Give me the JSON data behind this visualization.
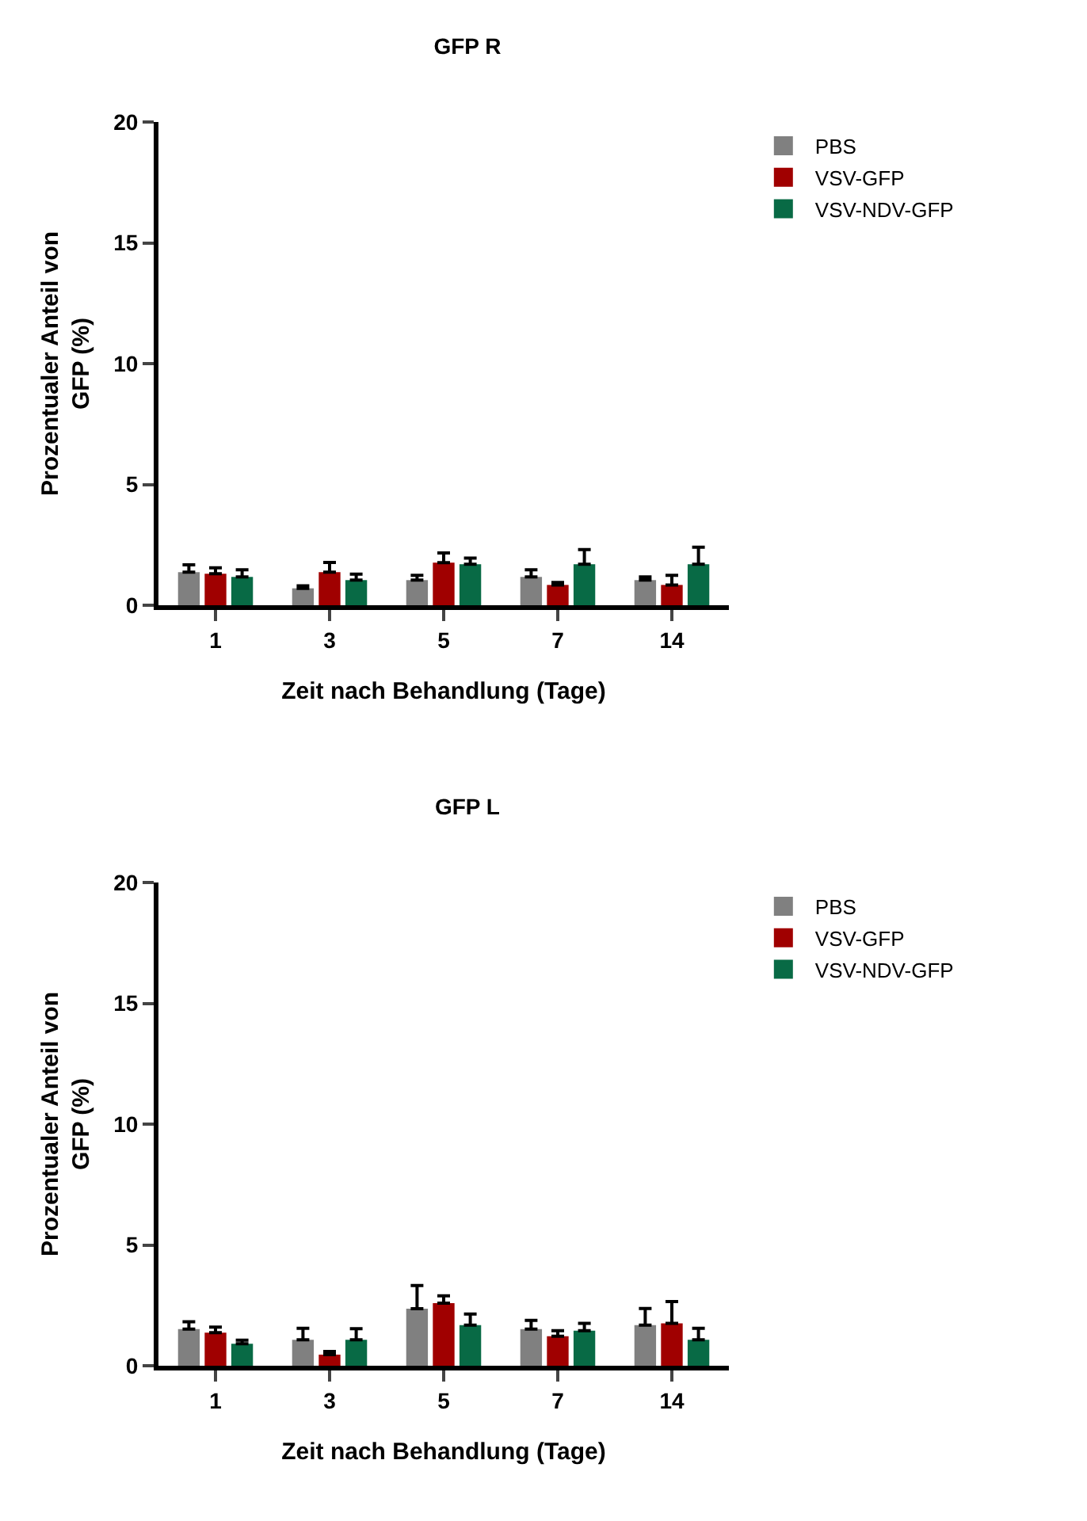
{
  "chart_data": [
    {
      "type": "bar",
      "title": "GFP R",
      "xlabel": "Zeit nach Behandlung (Tage)",
      "ylabel": "Prozentualer Anteil von GFP (%)",
      "categories": [
        "1",
        "3",
        "5",
        "7",
        "14"
      ],
      "ylim": [
        0,
        20
      ],
      "yticks": [
        0,
        5,
        10,
        15,
        20
      ],
      "grid": false,
      "legend": "top right",
      "series": [
        {
          "name": "PBS",
          "color": "#808080",
          "values": [
            1.37,
            0.7,
            1.04,
            1.17,
            1.04
          ],
          "errors": [
            [
              1.37,
              1.67
            ],
            [
              0.7,
              0.8
            ],
            [
              1.04,
              1.24
            ],
            [
              1.17,
              1.47
            ],
            [
              1.04,
              1.17
            ]
          ]
        },
        {
          "name": "VSV-GFP",
          "color": "#a00000",
          "values": [
            1.3,
            1.37,
            1.76,
            0.84,
            0.84
          ],
          "errors": [
            [
              1.3,
              1.55
            ],
            [
              1.37,
              1.77
            ],
            [
              1.76,
              2.16
            ],
            [
              0.84,
              0.94
            ],
            [
              0.84,
              1.24
            ]
          ]
        },
        {
          "name": "VSV-NDV-GFP",
          "color": "#086a45",
          "values": [
            1.17,
            1.04,
            1.7,
            1.7,
            1.7
          ],
          "errors": [
            [
              1.17,
              1.47
            ],
            [
              1.04,
              1.29
            ],
            [
              1.7,
              1.95
            ],
            [
              1.7,
              2.3
            ],
            [
              1.7,
              2.4
            ]
          ]
        }
      ]
    },
    {
      "type": "bar",
      "title": "GFP L",
      "xlabel": "Zeit nach Behandlung (Tage)",
      "ylabel": "Prozentualer Anteil von GFP (%)",
      "categories": [
        "1",
        "3",
        "5",
        "7",
        "14"
      ],
      "ylim": [
        0,
        20
      ],
      "yticks": [
        0,
        5,
        10,
        15,
        20
      ],
      "grid": false,
      "legend": "top right",
      "series": [
        {
          "name": "PBS",
          "color": "#808080",
          "values": [
            1.52,
            1.07,
            2.36,
            1.52,
            1.68
          ],
          "errors": [
            [
              1.52,
              1.82
            ],
            [
              1.07,
              1.55
            ],
            [
              2.36,
              3.32
            ],
            [
              1.52,
              1.88
            ],
            [
              1.68,
              2.37
            ]
          ]
        },
        {
          "name": "VSV-GFP",
          "color": "#a00000",
          "values": [
            1.37,
            0.46,
            2.59,
            1.22,
            1.75
          ],
          "errors": [
            [
              1.37,
              1.6
            ],
            [
              0.46,
              0.59
            ],
            [
              2.59,
              2.89
            ],
            [
              1.22,
              1.45
            ],
            [
              1.75,
              2.66
            ]
          ]
        },
        {
          "name": "VSV-NDV-GFP",
          "color": "#086a45",
          "values": [
            0.91,
            1.07,
            1.68,
            1.45,
            1.07
          ],
          "errors": [
            [
              0.91,
              1.06
            ],
            [
              1.07,
              1.53
            ],
            [
              1.68,
              2.14
            ],
            [
              1.45,
              1.75
            ],
            [
              1.07,
              1.55
            ]
          ]
        }
      ]
    }
  ]
}
